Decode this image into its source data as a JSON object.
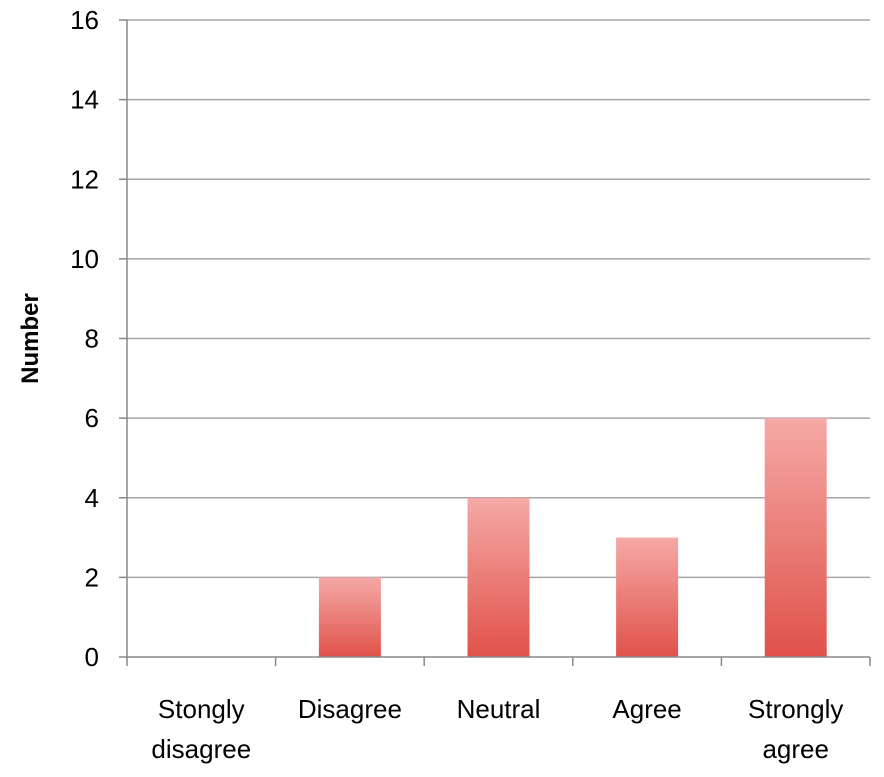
{
  "chart_data": {
    "type": "bar",
    "title": "",
    "xlabel": "",
    "ylabel": "Number",
    "ylim": [
      0,
      16
    ],
    "yticks": [
      0,
      2,
      4,
      6,
      8,
      10,
      12,
      14,
      16
    ],
    "grid": true,
    "legend": "none",
    "categories": [
      [
        "Stongly",
        "disagree"
      ],
      [
        "Disagree"
      ],
      [
        "Neutral"
      ],
      [
        "Agree"
      ],
      [
        "Strongly",
        "agree"
      ]
    ],
    "values": [
      0,
      2,
      4,
      3,
      6
    ],
    "colors": {
      "bar_top": "#f5a9a6",
      "bar_bottom": "#e0524a",
      "grid": "#a6a6a6",
      "axis": "#888888"
    }
  }
}
